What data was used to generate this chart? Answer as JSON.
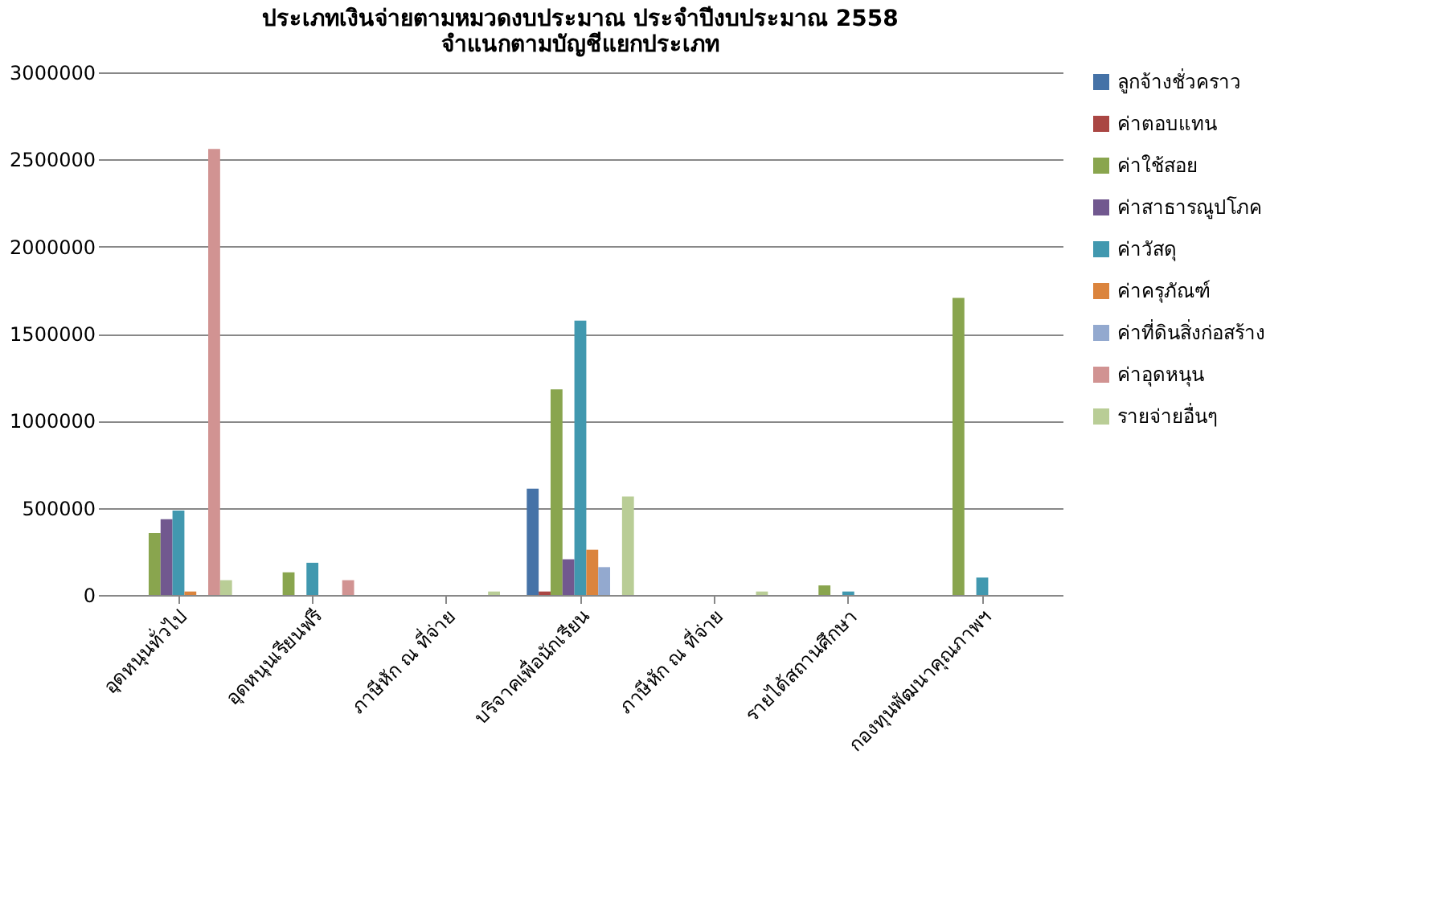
{
  "chart_data": {
    "type": "bar",
    "title": [
      "ประเภทเงินจ่ายตามหมวดงบประมาณ  ประจำปีงบประมาณ  2558",
      "จำแนกตามบัญชีแยกประเภท"
    ],
    "categories": [
      "อุดหนุนทั่วไป",
      "อุดหนุนเรียนฟรี",
      "ภาษีหัก ณ ที่จ่าย",
      "บริจาคเพื่อนักเรียน",
      "ภาษีหัก ณ ที่จ่าย",
      "รายได้สถานศึกษา",
      "กองทุนพัฒนาคุณภาพฯ"
    ],
    "series": [
      {
        "name": "ลูกจ้างชั่วคราว",
        "color": "#4572a7",
        "values": [
          null,
          null,
          null,
          610000,
          null,
          null,
          null
        ]
      },
      {
        "name": "ค่าตอบแทน",
        "color": "#aa4643",
        "values": [
          null,
          null,
          null,
          20000,
          null,
          null,
          null
        ]
      },
      {
        "name": "ค่าใช้สอย",
        "color": "#89a54e",
        "values": [
          355000,
          130000,
          null,
          1180000,
          null,
          55000,
          1705000
        ]
      },
      {
        "name": "ค่าสาธารณูปโภค",
        "color": "#71588f",
        "values": [
          435000,
          null,
          null,
          205000,
          null,
          null,
          null
        ]
      },
      {
        "name": "ค่าวัสดุ",
        "color": "#4198af",
        "values": [
          485000,
          185000,
          null,
          1575000,
          null,
          20000,
          100000
        ]
      },
      {
        "name": "ค่าครุภัณฑ์",
        "color": "#db843d",
        "values": [
          20000,
          null,
          null,
          260000,
          null,
          null,
          null
        ]
      },
      {
        "name": "ค่าที่ดินสิ่งก่อสร้าง",
        "color": "#93a9cf",
        "values": [
          null,
          null,
          null,
          160000,
          null,
          null,
          null
        ]
      },
      {
        "name": "ค่าอุดหนุน",
        "color": "#d19392",
        "values": [
          2560000,
          85000,
          null,
          null,
          null,
          null,
          null
        ]
      },
      {
        "name": "รายจ่ายอื่นๆ",
        "color": "#b9cd96",
        "values": [
          85000,
          null,
          20000,
          565000,
          20000,
          null,
          null
        ]
      }
    ],
    "ylim": [
      0,
      3000000
    ],
    "yticks": [
      0,
      500000,
      1000000,
      1500000,
      2000000,
      2500000,
      3000000
    ],
    "grid": "y",
    "legend": "right"
  }
}
